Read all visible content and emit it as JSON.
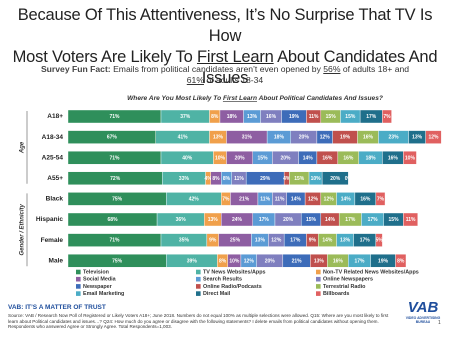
{
  "chart_data": {
    "type": "stacked_barh",
    "title_parts": [
      "Because Of This Attentiveness, It’s No Surprise That TV Is How",
      "Most Voters Are Likely To ",
      "First Learn",
      " About Candidates And Issues"
    ],
    "subtitle_parts": [
      "Survey Fun Fact:",
      " Emails from political candidates aren’t even opened by ",
      "56%",
      " of adults 18+ and",
      "61%",
      " of adults 18-34"
    ],
    "chart_title_parts": [
      "Where Are You Most Likely To ",
      "First Learn",
      " About Political Candidates And Issues?"
    ],
    "row_groups": [
      "Age",
      "Gender / Ethnicity"
    ],
    "categories": [
      "A18+",
      "A18-34",
      "A25-54",
      "A55+",
      "Black",
      "Hispanic",
      "Female",
      "Male"
    ],
    "series": [
      {
        "name": "Television",
        "color": "#2f8f5b",
        "values": [
          71,
          67,
          71,
          72,
          75,
          68,
          71,
          75
        ],
        "value_labels": [
          "71%",
          "67%",
          "71%",
          "72%",
          "75%",
          "68%",
          "71%",
          "75%"
        ]
      },
      {
        "name": "TV News Websites/Apps",
        "color": "#4fb3a5",
        "values": [
          37,
          41,
          40,
          33,
          42,
          36,
          35,
          39
        ],
        "value_labels": [
          "37%",
          "41%",
          "40%",
          "33%",
          "42%",
          "36%",
          "35%",
          "39%"
        ]
      },
      {
        "name": "Non-TV Related News Websites/Apps",
        "color": "#f0a04b",
        "values": [
          8,
          13,
          10,
          4,
          7,
          13,
          9,
          8
        ],
        "value_labels": [
          "8%",
          "13%",
          "10%",
          "4%",
          "7%",
          "13%",
          "9%",
          "8%"
        ]
      },
      {
        "name": "Social Media",
        "color": "#8e5ea2",
        "values": [
          18,
          31,
          20,
          8,
          21,
          24,
          25,
          10
        ],
        "value_labels": [
          "18%",
          "31%",
          "20%",
          "8%",
          "21%",
          "24%",
          "25%",
          "10%"
        ]
      },
      {
        "name": "Search Results",
        "color": "#5b9bd5",
        "values": [
          13,
          18,
          15,
          8,
          11,
          17,
          13,
          12
        ],
        "value_labels": [
          "13%",
          "18%",
          "15%",
          "8%",
          "11%",
          "17%",
          "13%",
          "12%"
        ]
      },
      {
        "name": "Online Newspapers",
        "color": "#7f7fbf",
        "values": [
          16,
          20,
          20,
          11,
          11,
          20,
          12,
          20
        ],
        "value_labels": [
          "16%",
          "20%",
          "20%",
          "11%",
          "11%",
          "20%",
          "12%",
          "20%"
        ]
      },
      {
        "name": "Newspaper",
        "color": "#3d6cb9",
        "values": [
          19,
          12,
          14,
          29,
          14,
          15,
          17,
          21
        ],
        "value_labels": [
          "19%",
          "12%",
          "14%",
          "29%",
          "14%",
          "15%",
          "17%",
          "21%"
        ]
      },
      {
        "name": "Online Radio/Podcasts",
        "color": "#c0504d",
        "values": [
          11,
          19,
          16,
          4,
          12,
          14,
          9,
          13
        ],
        "value_labels": [
          "11%",
          "19%",
          "16%",
          "4%",
          "12%",
          "14%",
          "9%",
          "13%"
        ]
      },
      {
        "name": "Terrestrial Radio",
        "color": "#9bbb59",
        "values": [
          15,
          16,
          16,
          15,
          12,
          17,
          14,
          16
        ],
        "value_labels": [
          "15%",
          "16%",
          "16%",
          "15%",
          "12%",
          "17%",
          "14%",
          "16%"
        ]
      },
      {
        "name": "Email Marketing",
        "color": "#4bacc6",
        "values": [
          15,
          23,
          18,
          10,
          14,
          17,
          13,
          17
        ],
        "value_labels": [
          "15%",
          "23%",
          "18%",
          "10%",
          "14%",
          "17%",
          "13%",
          "17%"
        ]
      },
      {
        "name": "Direct Mail",
        "color": "#1f6f8b",
        "values": [
          17,
          13,
          16,
          20,
          16,
          15,
          17,
          19
        ],
        "value_labels": [
          "17%",
          "13%",
          "16%",
          "20%",
          "16%",
          "15%",
          "17%",
          "19%"
        ]
      },
      {
        "name": "Billboards",
        "color": "#e06060",
        "values": [
          7,
          12,
          10,
          0,
          7,
          11,
          5,
          8
        ],
        "value_labels": [
          "7%",
          "12%",
          "10%",
          "0%",
          "7%",
          "11%",
          "5%",
          "8%"
        ]
      }
    ],
    "footer_heading": "VAB: IT’S A MATTER OF TRUST",
    "source": "Source: VAB / Research Now Poll of Registered or Likely Voters A18+; June 2018. Numbers do not equal 100% as multiple selections were allowed. Q15: Where are you most likely to first learn about Political candidates and issues…? Q24: How much do you agree or disagree with the following statements? I delete emails from political candidates without opening them. Respondents who answered Agree or Strongly Agree. Total Respondents=1,003.",
    "logo_text": "VAB",
    "logo_subtitle": "VIDEO ADVERTISING BUREAU",
    "page_number": "1"
  }
}
